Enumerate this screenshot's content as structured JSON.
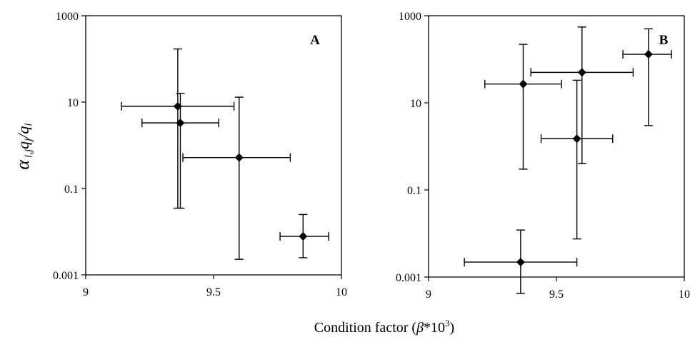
{
  "chart_data": [
    {
      "type": "scatter",
      "panel_label": "A",
      "xlim": [
        9,
        10
      ],
      "ylim": [
        0.001,
        1000
      ],
      "yscale": "log",
      "x_ticks": [
        "9",
        "9.5",
        "10"
      ],
      "y_ticks": [
        "0.001",
        "0.1",
        "10",
        "1000"
      ],
      "grid": false,
      "points": [
        {
          "x": 9.36,
          "y": 8.0,
          "x_err": [
            9.14,
            9.58
          ],
          "y_err": [
            0.035,
            170
          ]
        },
        {
          "x": 9.37,
          "y": 3.3,
          "x_err": [
            9.22,
            9.52
          ],
          "y_err": [
            0.035,
            16
          ]
        },
        {
          "x": 9.6,
          "y": 0.52,
          "x_err": [
            9.38,
            9.8
          ],
          "y_err": [
            0.0023,
            13
          ]
        },
        {
          "x": 9.85,
          "y": 0.0078,
          "x_err": [
            9.76,
            9.95
          ],
          "y_err": [
            0.0025,
            0.025
          ]
        }
      ]
    },
    {
      "type": "scatter",
      "panel_label": "B",
      "xlim": [
        9,
        10
      ],
      "ylim": [
        0.001,
        1000
      ],
      "yscale": "log",
      "x_ticks": [
        "9",
        "9.5",
        "10"
      ],
      "y_ticks": [
        "0.001",
        "0.1",
        "10",
        "1000"
      ],
      "grid": false,
      "points": [
        {
          "x": 9.36,
          "y": 0.0022,
          "x_err": [
            9.14,
            9.58
          ],
          "y_err": [
            0.00042,
            0.012
          ]
        },
        {
          "x": 9.37,
          "y": 27,
          "x_err": [
            9.22,
            9.52
          ],
          "y_err": [
            0.3,
            220
          ]
        },
        {
          "x": 9.58,
          "y": 1.5,
          "x_err": [
            9.44,
            9.72
          ],
          "y_err": [
            0.0075,
            33
          ]
        },
        {
          "x": 9.6,
          "y": 50,
          "x_err": [
            9.4,
            9.8
          ],
          "y_err": [
            0.4,
            550
          ]
        },
        {
          "x": 9.86,
          "y": 130,
          "x_err": [
            9.76,
            9.95
          ],
          "y_err": [
            3.0,
            500
          ]
        }
      ]
    }
  ],
  "ylabel": {
    "alpha": "α",
    "sub": "i,j",
    "rest": "q",
    "sub2": "j",
    "slash": "/q",
    "sub3": "i"
  },
  "xlabel": {
    "text": "Condition factor (",
    "beta": "β",
    "mid": "*10",
    "sup": "3",
    "end": ")"
  }
}
